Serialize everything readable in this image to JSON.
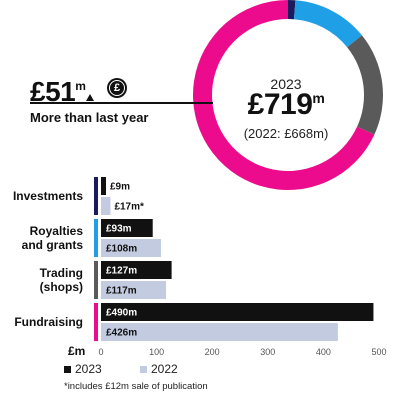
{
  "donut": {
    "year": "2023",
    "total": "£719",
    "total_unit": "m",
    "previous": "(2022: £668m)",
    "segments": [
      {
        "name": "Investments",
        "value": 9,
        "color": "#1a1a5e"
      },
      {
        "name": "Royalties and grants",
        "value": 93,
        "color": "#1fa0e6"
      },
      {
        "name": "Trading (shops)",
        "value": 127,
        "color": "#5a5a5a"
      },
      {
        "name": "Fundraising",
        "value": 490,
        "color": "#ec0b8c"
      }
    ]
  },
  "highlight": {
    "value": "£51",
    "unit": "m",
    "caption": "More than last year",
    "coin_symbol": "£"
  },
  "chart_data": {
    "type": "bar",
    "orientation": "horizontal",
    "categories": [
      "Investments",
      "Royalties and grants",
      "Trading (shops)",
      "Fundraising"
    ],
    "category_lines": [
      [
        "Investments"
      ],
      [
        "Royalties",
        "and grants"
      ],
      [
        "Trading",
        "(shops)"
      ],
      [
        "Fundraising"
      ]
    ],
    "category_colors": [
      "#1a1a5e",
      "#1fa0e6",
      "#5a5a5a",
      "#ec0b8c"
    ],
    "series": [
      {
        "name": "2023",
        "values": [
          9,
          93,
          127,
          490
        ],
        "labels": [
          "£9m",
          "£93m",
          "£127m",
          "£490m"
        ],
        "color": "#111111"
      },
      {
        "name": "2022",
        "values": [
          17,
          108,
          117,
          426
        ],
        "labels": [
          "£17m*",
          "£108m",
          "£117m",
          "£426m"
        ],
        "color": "#c3cbe0"
      }
    ],
    "xlabel": "£m",
    "xlim": [
      0,
      500
    ],
    "xticks": [
      0,
      100,
      200,
      300,
      400,
      500
    ],
    "legend_position": "bottom-left"
  },
  "footnote": "*includes £12m sale of publication"
}
